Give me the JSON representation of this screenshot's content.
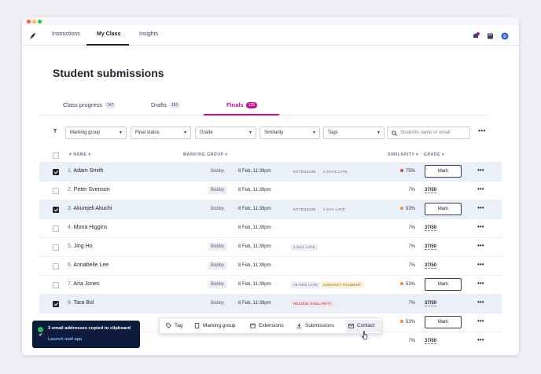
{
  "nav": {
    "tabs": [
      {
        "label": "Instructions"
      },
      {
        "label": "My Class"
      },
      {
        "label": "Insights"
      }
    ],
    "notification_count": "1",
    "user_initial": "D"
  },
  "page": {
    "title": "Student submissions"
  },
  "class_tabs": [
    {
      "label": "Class progress",
      "count": "147"
    },
    {
      "label": "Drafts",
      "count": "181"
    },
    {
      "label": "Finals",
      "count": "125"
    }
  ],
  "filters": {
    "marking_group": "Marking group",
    "final_status": "Final status",
    "grade": "Grade",
    "similarity": "Similarity",
    "tags": "Tags",
    "search_placeholder": "Students name or email"
  },
  "columns": {
    "name": "# NAME",
    "marking_group": "MARKING GROUP",
    "similarity": "SIMILARITY",
    "grade": "GRADE"
  },
  "rows": [
    {
      "num": "1.",
      "name": "Adam Smith",
      "group": "Bobby",
      "date": "8 Feb, 11:39pm",
      "tag1": "EXTENSION",
      "tag2": "2 DAYS LATE",
      "similarity": "75%",
      "grade": "Mark"
    },
    {
      "num": "2.",
      "name": "Peter Svenson",
      "group": "Bobby",
      "date": "8 Feb, 11:39pm",
      "tag1": "",
      "tag2": "",
      "similarity": "7%",
      "grade": "37/50"
    },
    {
      "num": "3.",
      "name": "Akumjeli Akuchi",
      "group": "Bobby",
      "date": "8 Feb, 11:39pm",
      "tag1": "EXTENSION",
      "tag2": "1 DAY LATE",
      "similarity": "53%",
      "grade": "Mark"
    },
    {
      "num": "4.",
      "name": "Mona Higgins",
      "group": "",
      "date": "8 Feb, 11:39pm",
      "tag1": "",
      "tag2": "",
      "similarity": "7%",
      "grade": "37/50"
    },
    {
      "num": "5.",
      "name": "Jing Ho",
      "group": "Bobby",
      "date": "8 Feb, 11:39pm",
      "tag1": "1 DAY LATE",
      "tag2": "",
      "similarity": "7%",
      "grade": "37/50"
    },
    {
      "num": "6.",
      "name": "Annabelle Lee",
      "group": "Bobby",
      "date": "8 Feb, 11:39pm",
      "tag1": "",
      "tag2": "",
      "similarity": "7%",
      "grade": "37/50"
    },
    {
      "num": "7.",
      "name": "Aria Jones",
      "group": "Bobby",
      "date": "8 Feb, 11:39pm",
      "tag1": "<5 HRS LATE",
      "tag2": "CONTACT STUDENT",
      "similarity": "53%",
      "grade": "Mark"
    },
    {
      "num": "8.",
      "name": "Tara Bol",
      "group": "Bobby",
      "date": "8 Feb, 11:39pm",
      "tag1": "REVIEW SIMILARITY",
      "tag2": "",
      "similarity": "7%",
      "grade": "37/50"
    },
    {
      "num": "",
      "name": "",
      "group": "",
      "date": "",
      "tag1": "",
      "tag2": "",
      "similarity": "53%",
      "grade": "Mark"
    },
    {
      "num": "",
      "name": "",
      "group": "",
      "date": "",
      "tag1": "",
      "tag2": "",
      "similarity": "7%",
      "grade": "37/50"
    }
  ],
  "toast": {
    "message": "3 email addresses copied to clipboard",
    "link": "Launch mail app"
  },
  "action_bar": {
    "tag": "Tag",
    "marking_group": "Marking group",
    "extensions": "Extensions",
    "submissions": "Submissions",
    "contact": "Contact"
  },
  "colors": {
    "accent": "#c0148c",
    "selected_row": "#e9f0f9",
    "similarity_high": "#e23b4e",
    "similarity_mid": "#f08a2a",
    "toast_bg": "#0f1b3d"
  }
}
